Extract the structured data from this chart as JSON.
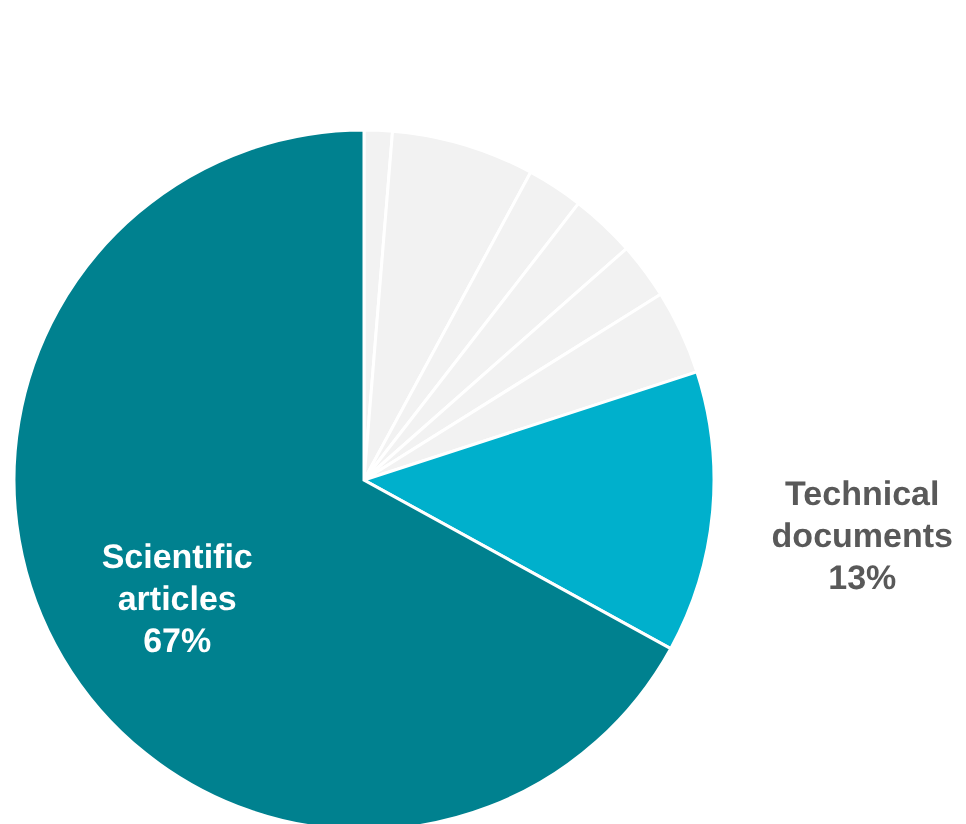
{
  "chart_data": {
    "type": "pie",
    "categories": [
      null,
      null,
      null,
      null,
      null,
      null,
      "Technical documents",
      "Scientific articles"
    ],
    "values": [
      1.3,
      6.6,
      2.6,
      3.0,
      2.6,
      3.9,
      13,
      67
    ],
    "value_labels": [
      null,
      null,
      null,
      null,
      null,
      null,
      "13%",
      "67%"
    ],
    "colors": [
      "#f2f2f2",
      "#f2f2f2",
      "#f2f2f2",
      "#f2f2f2",
      "#f2f2f2",
      "#f2f2f2",
      "#00b0cc",
      "#00818f"
    ]
  }
}
